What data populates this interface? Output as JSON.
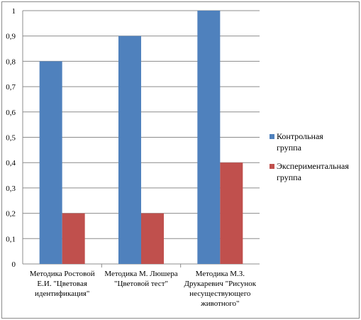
{
  "chart_data": {
    "type": "bar",
    "title": "",
    "xlabel": "",
    "ylabel": "",
    "ylim": [
      0,
      1
    ],
    "yticks": [
      "0",
      "0,1",
      "0,2",
      "0,3",
      "0,4",
      "0,5",
      "0,6",
      "0,7",
      "0,8",
      "0,9",
      "1"
    ],
    "ytick_values": [
      0,
      0.1,
      0.2,
      0.3,
      0.4,
      0.5,
      0.6,
      0.7,
      0.8,
      0.9,
      1
    ],
    "grid": true,
    "legend_position": "right",
    "categories": [
      [
        "Методика Ростовой",
        "Е.И. \"Цветовая",
        "идентификация\""
      ],
      [
        "Методика М. Люшера",
        "\"Цветовой тест\""
      ],
      [
        "Методика  М.З.",
        "Друкаревич \"Рисунок",
        "несуществующего",
        "животного\""
      ]
    ],
    "series": [
      {
        "name": [
          "Контрольная",
          "группа"
        ],
        "color": "#4f81bd",
        "values": [
          0.8,
          0.9,
          1.0
        ]
      },
      {
        "name": [
          "Экспериментальная",
          "группа"
        ],
        "color": "#c0504d",
        "values": [
          0.2,
          0.2,
          0.4
        ]
      }
    ]
  }
}
